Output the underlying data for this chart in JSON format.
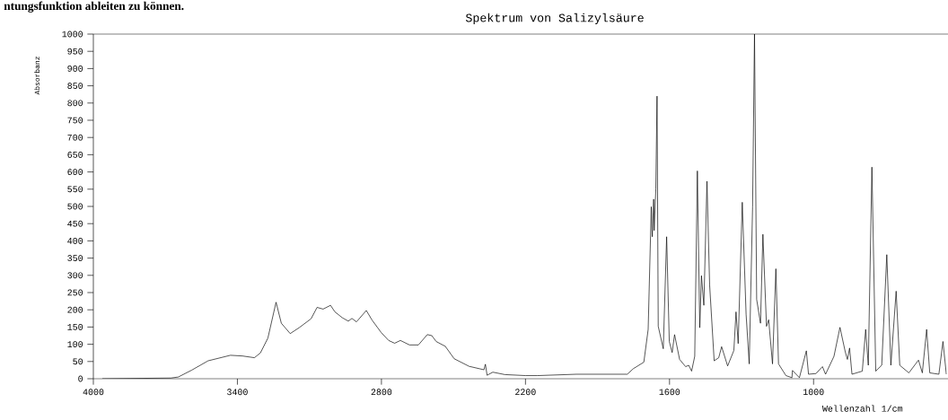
{
  "chart_data": {
    "type": "line",
    "title": "Spektrum von Salizylsäure",
    "xlabel": "Wellenzahl 1/cm",
    "ylabel": "Absorbanz",
    "annotations": [
      "ntungsfunktion ableiten zu können."
    ],
    "x": [
      3963,
      3677,
      3646,
      3590,
      3522,
      3429,
      3379,
      3329,
      3304,
      3273,
      3239,
      3217,
      3180,
      3143,
      3093,
      3068,
      3043,
      3012,
      2994,
      2963,
      2938,
      2923,
      2904,
      2863,
      2839,
      2801,
      2770,
      2745,
      2721,
      2683,
      2646,
      2609,
      2590,
      2572,
      2534,
      2497,
      2435,
      2373,
      2367,
      2360,
      2336,
      2286,
      2199,
      2150,
      1988,
      1776,
      1751,
      1707,
      1689,
      1676,
      1672,
      1666,
      1664,
      1657,
      1652,
      1647,
      1626,
      1612,
      1601,
      1589,
      1579,
      1558,
      1533,
      1520,
      1508,
      1495,
      1484,
      1474,
      1467,
      1457,
      1444,
      1433,
      1414,
      1395,
      1383,
      1358,
      1332,
      1323,
      1314,
      1297,
      1281,
      1268,
      1254,
      1246,
      1237,
      1221,
      1211,
      1196,
      1187,
      1171,
      1157,
      1146,
      1115,
      1090,
      1088,
      1059,
      1030,
      1021,
      990,
      963,
      950,
      915,
      890,
      868,
      859,
      850,
      840,
      797,
      783,
      772,
      757,
      741,
      716,
      695,
      678,
      656,
      641,
      603,
      563,
      547,
      529,
      516,
      478,
      461,
      447
    ],
    "values": [
      0,
      2,
      5,
      25,
      52,
      68,
      66,
      61,
      75,
      118,
      222,
      161,
      131,
      148,
      174,
      207,
      202,
      213,
      194,
      177,
      167,
      175,
      165,
      198,
      170,
      134,
      111,
      103,
      111,
      98,
      98,
      128,
      125,
      108,
      94,
      58,
      36,
      26,
      42,
      10,
      19,
      12,
      9,
      9,
      13,
      13,
      29,
      48,
      143,
      499,
      412,
      521,
      430,
      551,
      820,
      152,
      87,
      412,
      108,
      76,
      128,
      56,
      35,
      39,
      22,
      65,
      603,
      148,
      299,
      213,
      573,
      273,
      52,
      61,
      93,
      37,
      82,
      194,
      102,
      512,
      187,
      43,
      499,
      1000,
      230,
      161,
      419,
      152,
      171,
      43,
      319,
      43,
      9,
      3,
      24,
      3,
      81,
      13,
      15,
      35,
      13,
      65,
      149,
      78,
      56,
      89,
      13,
      22,
      143,
      39,
      614,
      22,
      39,
      360,
      39,
      254,
      39,
      17,
      54,
      17,
      143,
      17,
      13,
      108,
      13
    ],
    "color": "#000000",
    "xlim": [
      4000,
      440
    ],
    "ylim": [
      0,
      1000
    ],
    "xticks": [
      4000,
      3400,
      2800,
      2200,
      1600,
      1000
    ],
    "yticks": [
      0,
      50,
      100,
      150,
      200,
      250,
      300,
      350,
      400,
      450,
      500,
      550,
      600,
      650,
      700,
      750,
      800,
      850,
      900,
      950,
      1000
    ]
  }
}
